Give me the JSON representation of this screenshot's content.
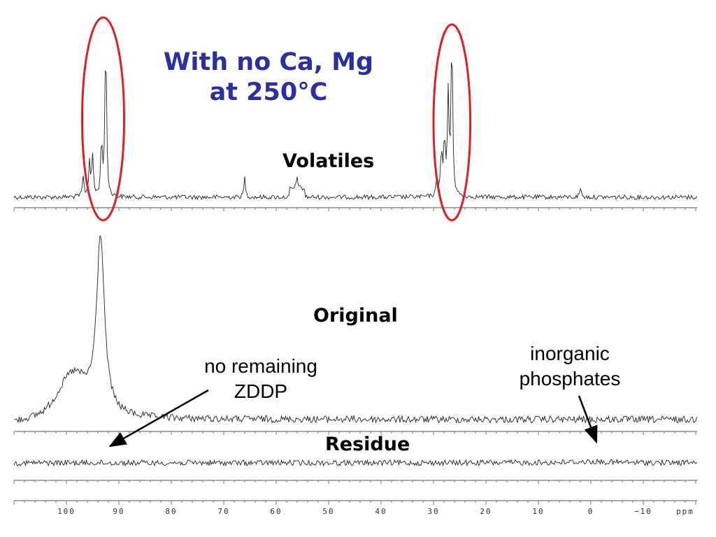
{
  "slide": {
    "title_line1": "With no Ca, Mg",
    "title_line2": "at 250°C",
    "title_color": "#2b2fa0",
    "highlight_color": "#e02020"
  },
  "chart_data": {
    "type": "line",
    "xunit": "ppm",
    "xlim": [
      110,
      -20
    ],
    "x_reversed": true,
    "x_ticks": [
      100,
      90,
      80,
      70,
      60,
      50,
      40,
      30,
      20,
      10,
      0,
      -10
    ],
    "x_tick_labels": [
      "100",
      "90",
      "80",
      "70",
      "60",
      "50",
      "40",
      "30",
      "20",
      "10",
      "0",
      "−10"
    ],
    "x_unit_label": "ppm",
    "grid": false,
    "series": [
      {
        "name": "Volatiles",
        "peaks": [
          {
            "x": 92.5,
            "height": 1.0
          },
          {
            "x": 93.3,
            "height": 0.35
          },
          {
            "x": 95.0,
            "height": 0.25
          },
          {
            "x": 95.6,
            "height": 0.22
          },
          {
            "x": 96.8,
            "height": 0.12
          },
          {
            "x": 66.0,
            "height": 0.12
          },
          {
            "x": 56.0,
            "height": 0.08
          },
          {
            "x": 26.5,
            "height": 1.0
          },
          {
            "x": 27.2,
            "height": 0.62
          },
          {
            "x": 27.9,
            "height": 0.35
          },
          {
            "x": 28.5,
            "height": 0.28
          },
          {
            "x": 29.3,
            "height": 0.12
          },
          {
            "x": 2.0,
            "height": 0.06
          }
        ]
      },
      {
        "name": "Original",
        "peaks": [
          {
            "x": 93.5,
            "height": 1.0
          },
          {
            "x": 98.5,
            "height": 0.15
          }
        ]
      },
      {
        "name": "Residue",
        "peaks": [
          {
            "x": 0,
            "height": 0.08
          }
        ]
      }
    ],
    "annotations": [
      {
        "lines": [
          "no remaining",
          "ZDDP"
        ],
        "points_to_ppm": 91
      },
      {
        "lines": [
          "inorganic",
          "phosphates"
        ],
        "points_to_ppm": 0
      }
    ],
    "highlighted_regions_ppm": [
      [
        97,
        89
      ],
      [
        30,
        23
      ]
    ]
  }
}
